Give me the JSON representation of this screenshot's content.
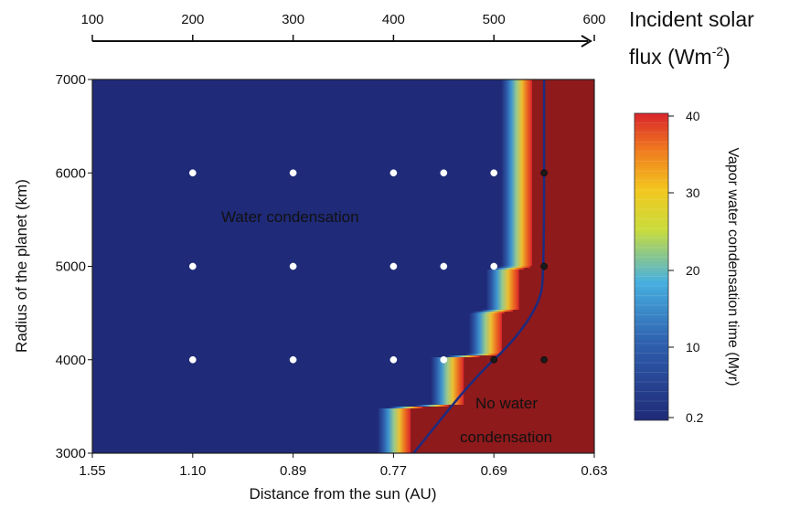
{
  "chart_data": {
    "type": "heatmap",
    "xlabel": "Distance from the sun (AU)",
    "ylabel": "Radius of the planet (km)",
    "x_tick_labels": [
      "1.55",
      "1.10",
      "0.89",
      "0.77",
      "0.69",
      "0.63"
    ],
    "y_ticks": [
      3000,
      4000,
      5000,
      6000,
      7000
    ],
    "ylim": [
      3000,
      7000
    ],
    "top_axis": {
      "title_line1": "Incident solar",
      "title_line2": "flux (Wm",
      "title_sup": "-2",
      "title_close": ")",
      "ticks": [
        100,
        200,
        300,
        400,
        500,
        600
      ],
      "range": [
        100,
        600
      ]
    },
    "colorbar": {
      "label": "Vapor water condensation time (Myr)",
      "ticks": [
        "40",
        "30",
        "20",
        "10",
        "0.2"
      ],
      "range": [
        0.2,
        40
      ],
      "colors": [
        "#1f2a78",
        "#2e5fae",
        "#47b0e0",
        "#e8e33a",
        "#f07a1e",
        "#d8242a"
      ]
    },
    "annotations": {
      "condensation": "Water condensation",
      "no_condensation_1": "No water",
      "no_condensation_2": "condensation"
    },
    "boundary_flux_by_radius": [
      {
        "radius": 3000,
        "flux": 417,
        "width": 15
      },
      {
        "radius": 3480,
        "flux": 417,
        "width": 15
      },
      {
        "radius": 3520,
        "flux": 470,
        "width": 15
      },
      {
        "radius": 4020,
        "flux": 470,
        "width": 15
      },
      {
        "radius": 4060,
        "flux": 508,
        "width": 15
      },
      {
        "radius": 4500,
        "flux": 508,
        "width": 15
      },
      {
        "radius": 4540,
        "flux": 525,
        "width": 15
      },
      {
        "radius": 4960,
        "flux": 525,
        "width": 15
      },
      {
        "radius": 5000,
        "flux": 538,
        "width": 14
      },
      {
        "radius": 7000,
        "flux": 538,
        "width": 14
      }
    ],
    "boundary_line": {
      "color": "#1c2b80",
      "points": [
        [
          420,
          3000
        ],
        [
          480,
          3800
        ],
        [
          520,
          4200
        ],
        [
          545,
          4600
        ],
        [
          550,
          4900
        ],
        [
          550,
          7000
        ]
      ]
    },
    "points": [
      {
        "flux": 200,
        "radius": 6000,
        "condensation": true
      },
      {
        "flux": 300,
        "radius": 6000,
        "condensation": true
      },
      {
        "flux": 400,
        "radius": 6000,
        "condensation": true
      },
      {
        "flux": 450,
        "radius": 6000,
        "condensation": true
      },
      {
        "flux": 500,
        "radius": 6000,
        "condensation": true
      },
      {
        "flux": 550,
        "radius": 6000,
        "condensation": false
      },
      {
        "flux": 200,
        "radius": 5000,
        "condensation": true
      },
      {
        "flux": 300,
        "radius": 5000,
        "condensation": true
      },
      {
        "flux": 400,
        "radius": 5000,
        "condensation": true
      },
      {
        "flux": 450,
        "radius": 5000,
        "condensation": true
      },
      {
        "flux": 500,
        "radius": 5000,
        "condensation": true
      },
      {
        "flux": 550,
        "radius": 5000,
        "condensation": false
      },
      {
        "flux": 200,
        "radius": 4000,
        "condensation": true
      },
      {
        "flux": 300,
        "radius": 4000,
        "condensation": true
      },
      {
        "flux": 400,
        "radius": 4000,
        "condensation": true
      },
      {
        "flux": 450,
        "radius": 4000,
        "condensation": true
      },
      {
        "flux": 500,
        "radius": 4000,
        "condensation": false
      },
      {
        "flux": 550,
        "radius": 4000,
        "condensation": false
      }
    ],
    "colors": {
      "low": "#1f2a78",
      "high": "#8e1a1c",
      "annotation_red": "#c8102e",
      "annotation_white": "#ffffff"
    }
  }
}
